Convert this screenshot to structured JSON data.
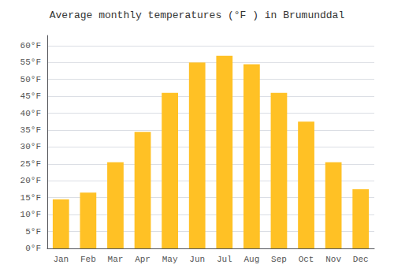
{
  "chart_data": {
    "type": "bar",
    "title": "Average monthly temperatures (°F ) in Brumunddal",
    "categories": [
      "Jan",
      "Feb",
      "Mar",
      "Apr",
      "May",
      "Jun",
      "Jul",
      "Aug",
      "Sep",
      "Oct",
      "Nov",
      "Dec"
    ],
    "values": [
      14.5,
      16.5,
      25.5,
      34.5,
      46.0,
      55.0,
      57.0,
      54.5,
      46.0,
      37.5,
      25.5,
      17.5
    ],
    "color": "#FFC125",
    "ylim": [
      0,
      63
    ],
    "yticks": [
      {
        "value": 0,
        "label": "0°F"
      },
      {
        "value": 5,
        "label": "5°F"
      },
      {
        "value": 10,
        "label": "10°F"
      },
      {
        "value": 15,
        "label": "15°F"
      },
      {
        "value": 20,
        "label": "20°F"
      },
      {
        "value": 25,
        "label": "25°F"
      },
      {
        "value": 30,
        "label": "30°F"
      },
      {
        "value": 35,
        "label": "35°F"
      },
      {
        "value": 40,
        "label": "40°F"
      },
      {
        "value": 45,
        "label": "45°F"
      },
      {
        "value": 50,
        "label": "50°F"
      },
      {
        "value": 55,
        "label": "55°F"
      },
      {
        "value": 60,
        "label": "60°F"
      }
    ],
    "grid": true
  }
}
